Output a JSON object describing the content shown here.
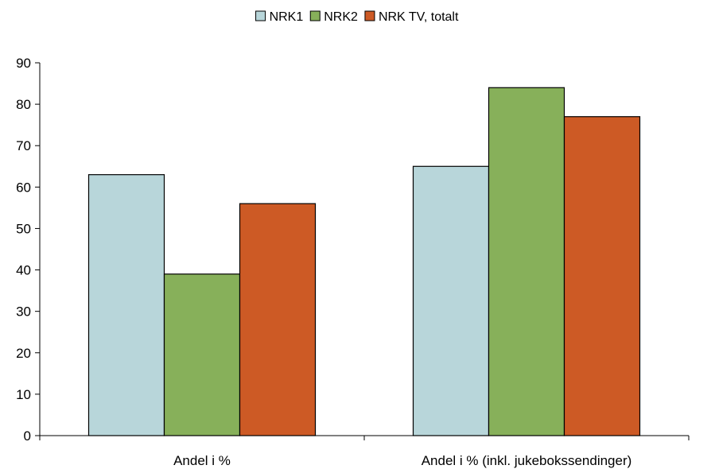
{
  "chart_data": {
    "type": "bar",
    "categories": [
      "Andel i %",
      "Andel i % (inkl. jukebokssendinger)"
    ],
    "series": [
      {
        "name": "NRK1",
        "color": "#b8d6da",
        "values": [
          63,
          65
        ]
      },
      {
        "name": "NRK2",
        "color": "#87b05a",
        "values": [
          39,
          84
        ]
      },
      {
        "name": "NRK TV, totalt",
        "color": "#cd5a25",
        "values": [
          56,
          77
        ]
      }
    ],
    "ylim": [
      0,
      90
    ],
    "yticks": [
      0,
      10,
      20,
      30,
      40,
      50,
      60,
      70,
      80,
      90
    ],
    "legend_position": "top-center",
    "grid": false
  }
}
